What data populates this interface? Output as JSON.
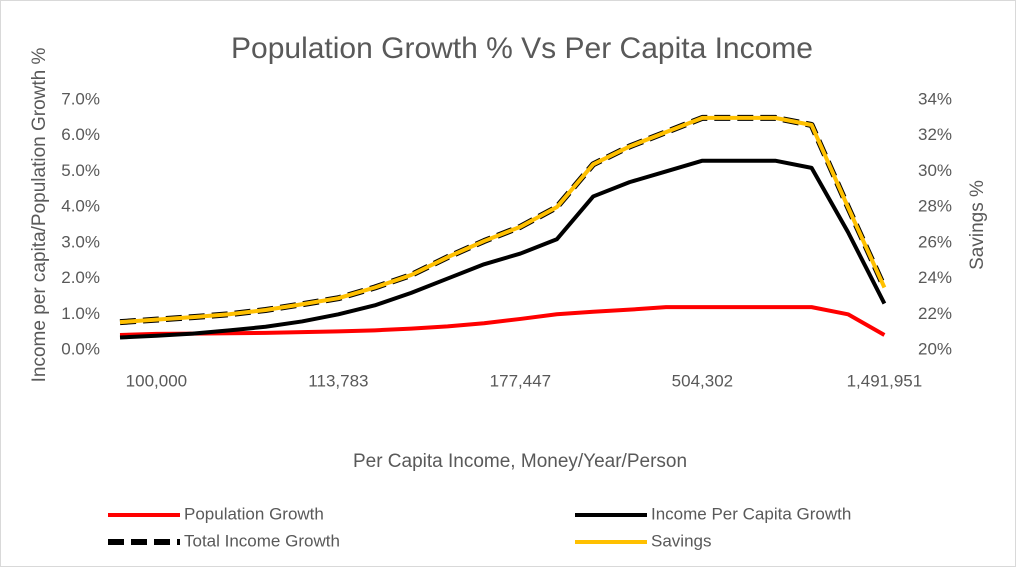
{
  "chart_data": {
    "type": "line",
    "title": "Population Growth % Vs Per Capita Income",
    "x_label": "Per Capita Income, Money/Year/Person",
    "y_label": "Income per capita/Population Growth %",
    "y2_label": "Savings %",
    "categories": [
      null,
      "100,000",
      null,
      null,
      null,
      null,
      "113,783",
      null,
      null,
      null,
      null,
      "177,447",
      null,
      null,
      null,
      null,
      "504,302",
      null,
      null,
      null,
      null,
      "1,491,951"
    ],
    "ylim": [
      0,
      7
    ],
    "yticks": [
      {
        "value": 0,
        "label": "0.0%"
      },
      {
        "value": 1,
        "label": "1.0%"
      },
      {
        "value": 2,
        "label": "2.0%"
      },
      {
        "value": 3,
        "label": "3.0%"
      },
      {
        "value": 4,
        "label": "4.0%"
      },
      {
        "value": 5,
        "label": "5.0%"
      },
      {
        "value": 6,
        "label": "6.0%"
      },
      {
        "value": 7,
        "label": "7.0%"
      }
    ],
    "y2lim": [
      20,
      34
    ],
    "y2ticks": [
      {
        "value": 20,
        "label": "20%"
      },
      {
        "value": 22,
        "label": "22%"
      },
      {
        "value": 24,
        "label": "24%"
      },
      {
        "value": 26,
        "label": "26%"
      },
      {
        "value": 28,
        "label": "28%"
      },
      {
        "value": 30,
        "label": "30%"
      },
      {
        "value": 32,
        "label": "32%"
      },
      {
        "value": 34,
        "label": "34%"
      }
    ],
    "legend": "bottom",
    "series": [
      {
        "name": "Population Growth",
        "color": "#ff0000",
        "values": [
          0.42,
          0.45,
          0.46,
          0.47,
          0.48,
          0.5,
          0.52,
          0.55,
          0.6,
          0.66,
          0.75,
          0.87,
          1.0,
          1.07,
          1.13,
          1.2,
          1.2,
          1.2,
          1.2,
          1.2,
          1.0,
          0.42
        ]
      },
      {
        "name": "Income Per Capita Growth",
        "color": "#000000",
        "values": [
          0.35,
          0.4,
          0.46,
          0.55,
          0.65,
          0.8,
          1.0,
          1.25,
          1.6,
          2.0,
          2.4,
          2.7,
          3.1,
          4.3,
          4.7,
          5.0,
          5.3,
          5.3,
          5.3,
          5.1,
          3.3,
          1.3
        ]
      },
      {
        "name": "Total Income Growth",
        "color": "#000000",
        "dashed": true,
        "values": [
          0.78,
          0.85,
          0.92,
          1.0,
          1.12,
          1.28,
          1.45,
          1.75,
          2.1,
          2.6,
          3.05,
          3.45,
          4.0,
          5.2,
          5.7,
          6.1,
          6.5,
          6.5,
          6.5,
          6.3,
          4.0,
          1.75
        ]
      },
      {
        "name": "Savings",
        "color": "#ffc000",
        "axis": "y2",
        "values": [
          21.56,
          21.7,
          21.84,
          22.0,
          22.24,
          22.56,
          22.9,
          23.5,
          24.2,
          25.2,
          26.1,
          26.9,
          28.0,
          30.4,
          31.4,
          32.2,
          33,
          33,
          33,
          32.6,
          28,
          23.5
        ]
      }
    ]
  }
}
